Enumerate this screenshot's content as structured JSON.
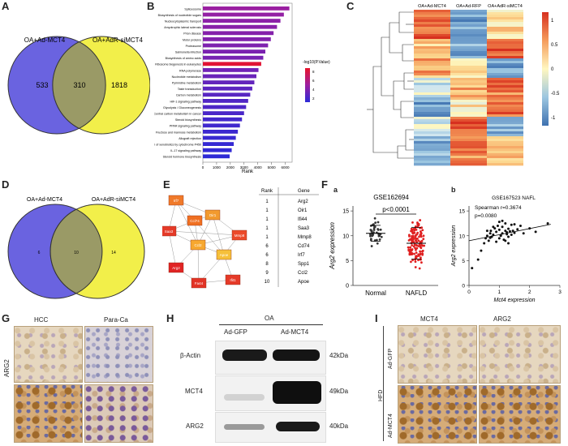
{
  "panels": {
    "A": "A",
    "B": "B",
    "C": "C",
    "D": "D",
    "E": "E",
    "F": "F",
    "G": "G",
    "H": "H",
    "I": "I"
  },
  "venn_a": {
    "left_label": "OA+Ad-MCT4",
    "right_label": "OA+AdR-siMCT4",
    "left_only": "533",
    "overlap": "310",
    "right_only": "1818",
    "left_color": "#6a63e0",
    "right_color": "#f2ef4a"
  },
  "venn_d": {
    "left_label": "OA+Ad-MCT4",
    "right_label": "OA+AdR-siMCT4",
    "left_only": "6",
    "overlap": "10",
    "right_only": "14"
  },
  "chart_data": [
    {
      "type": "bar",
      "orientation": "horizontal",
      "xlabel": "Rank",
      "xticks": [
        "0",
        "1000",
        "2000",
        "3000",
        "4000",
        "5000",
        "6000"
      ],
      "xlim": [
        0,
        6500
      ],
      "legend_title": "-log10(P.Value)",
      "legend_ticks": [
        "8",
        "6",
        "4",
        "2"
      ],
      "categories": [
        "Spliceosome",
        "Biosynthesis of nucleotide sugars",
        "Nucleocytoplasmic transport",
        "Amyotrophic lateral sclerosis",
        "Prion disease",
        "Motor proteins",
        "Proteasome",
        "Salmonella infection",
        "Biosynthesis of amino acids",
        "Ribosome biogenesis in eukaryotes",
        "RNA polymerase",
        "Nucleotide metabolism",
        "Pyrimidine metabolism",
        "Taste transduction",
        "Carbon metabolism",
        "HIF-1 signaling pathway",
        "Glycolysis / Gluconeogenesis",
        "Central carbon metabolism in cancer",
        "Steroid biosynthesis",
        "PPAR signaling pathway",
        "Fructose and mannose metabolism",
        "Allograft rejection",
        "Metabolism of xenobiotics by cytochrome P450",
        "IL-17 signaling pathway",
        "Steroid hormone biosynthesis"
      ],
      "values": [
        6300,
        5900,
        5650,
        5400,
        5150,
        4950,
        4750,
        4550,
        4400,
        4250,
        4050,
        3900,
        3750,
        3600,
        3450,
        3300,
        3150,
        3000,
        2850,
        2700,
        2550,
        2400,
        2250,
        2100,
        1950
      ],
      "neglog10p": [
        5.2,
        5.0,
        4.8,
        4.7,
        4.6,
        4.5,
        4.4,
        4.3,
        4.2,
        8.2,
        4.0,
        3.8,
        3.6,
        3.4,
        3.3,
        3.1,
        3.0,
        2.9,
        2.7,
        2.6,
        2.5,
        2.4,
        2.3,
        2.2,
        2.1
      ]
    },
    {
      "type": "heatmap",
      "columns": [
        "OA+Ad-MCT4",
        "OA+Ad-RFP",
        "OA+AdR-siMCT4"
      ],
      "colorbar_ticks": [
        "1",
        "0.5",
        "0",
        "-0.5",
        "-1"
      ],
      "zlim": [
        -1.4,
        1.4
      ]
    },
    {
      "type": "scatter",
      "title": "GSE162694",
      "ylabel": "Arg2 expression",
      "categories": [
        "Normal",
        "NAFLD"
      ],
      "yticks": [
        "0",
        "5",
        "10",
        "15"
      ],
      "ylim": [
        0,
        16
      ],
      "group_means": [
        10.5,
        8.5
      ],
      "group_sd": [
        1.6,
        3.2
      ],
      "group_n": [
        38,
        130
      ],
      "annotation": "p<0.0001"
    },
    {
      "type": "scatter",
      "title": "GSE167523  NAFL",
      "xlabel": "Mct4 expression",
      "ylabel": "Arg2 expression",
      "xticks": [
        "0",
        "1",
        "2",
        "3"
      ],
      "yticks": [
        "0",
        "5",
        "10",
        "15"
      ],
      "xlim": [
        0,
        3
      ],
      "ylim": [
        0,
        16
      ],
      "stats": [
        "Spearman r=0.3674",
        "p=0.0080"
      ],
      "x": [
        0.1,
        0.3,
        0.4,
        0.5,
        0.55,
        0.6,
        0.65,
        0.7,
        0.72,
        0.75,
        0.8,
        0.85,
        0.9,
        0.95,
        1.0,
        1.0,
        1.05,
        1.1,
        1.1,
        1.15,
        1.2,
        1.2,
        1.25,
        1.3,
        1.3,
        1.35,
        1.4,
        1.45,
        1.5,
        1.6,
        1.7,
        1.8,
        2.0,
        2.2,
        2.6,
        0.9,
        1.0,
        1.2,
        0.8,
        1.4,
        1.1,
        0.7,
        1.3,
        1.5,
        0.6,
        1.25,
        1.05
      ],
      "y": [
        3.5,
        5.2,
        7.0,
        8.5,
        9.5,
        10.0,
        9.0,
        10.5,
        11.0,
        9.8,
        10.2,
        11.5,
        10.8,
        12.0,
        9.5,
        11.2,
        10.0,
        11.8,
        10.5,
        9.2,
        11.0,
        12.5,
        10.3,
        11.4,
        9.8,
        10.9,
        12.2,
        11.0,
        10.6,
        11.3,
        12.0,
        10.5,
        11.5,
        10.8,
        12.5,
        8.8,
        12.8,
        9.0,
        11.8,
        10.2,
        13.0,
        9.6,
        8.5,
        12.3,
        11.0,
        10.7,
        10.1
      ],
      "fit": [
        [
          0,
          9.0
        ],
        [
          2.7,
          12.3
        ]
      ]
    }
  ],
  "ppi": {
    "nodes": [
      {
        "label": "Irf7",
        "color": "#f07a2a"
      },
      {
        "label": "Oir1",
        "color": "#f29a2e"
      },
      {
        "label": "Ccl74",
        "color": "#f07022"
      },
      {
        "label": "Saa3",
        "color": "#e53a28"
      },
      {
        "label": "Mmp8",
        "color": "#ec4a2a"
      },
      {
        "label": "Ccl2",
        "color": "#f7a830"
      },
      {
        "label": "Apoe",
        "color": "#f6c03a"
      },
      {
        "label": "Arg2",
        "color": "#e02424"
      },
      {
        "label": "Fa44",
        "color": "#e23426"
      },
      {
        "label": "Ifit1",
        "color": "#e53a28"
      }
    ],
    "table_header": [
      "Rank",
      "Gene"
    ],
    "table_rows": [
      [
        "1",
        "Arg2"
      ],
      [
        "1",
        "Oir1"
      ],
      [
        "1",
        "Ifi44"
      ],
      [
        "1",
        "Saa3"
      ],
      [
        "1",
        "Mmp8"
      ],
      [
        "6",
        "Cd74"
      ],
      [
        "6",
        "Irf7"
      ],
      [
        "8",
        "Spp1"
      ],
      [
        "9",
        "Ccl2"
      ],
      [
        "10",
        "Apoe"
      ]
    ]
  },
  "sub_labels": {
    "a": "a",
    "b": "b"
  },
  "ihc_g": {
    "col1": "HCC",
    "col2": "Para-Ca",
    "row": "ARG2"
  },
  "western": {
    "group": "OA",
    "lanes": [
      "Ad-GFP",
      "Ad-MCT4"
    ],
    "rows": [
      {
        "name": "β-Actin",
        "kda": "42kDa"
      },
      {
        "name": "MCT4",
        "kda": "49kDa"
      },
      {
        "name": "ARG2",
        "kda": "40kDa"
      }
    ]
  },
  "ihc_i": {
    "col1": "MCT4",
    "col2": "ARG2",
    "group": "HFD",
    "row1": "Ad-GFP",
    "row2": "Ad-MCT4"
  }
}
